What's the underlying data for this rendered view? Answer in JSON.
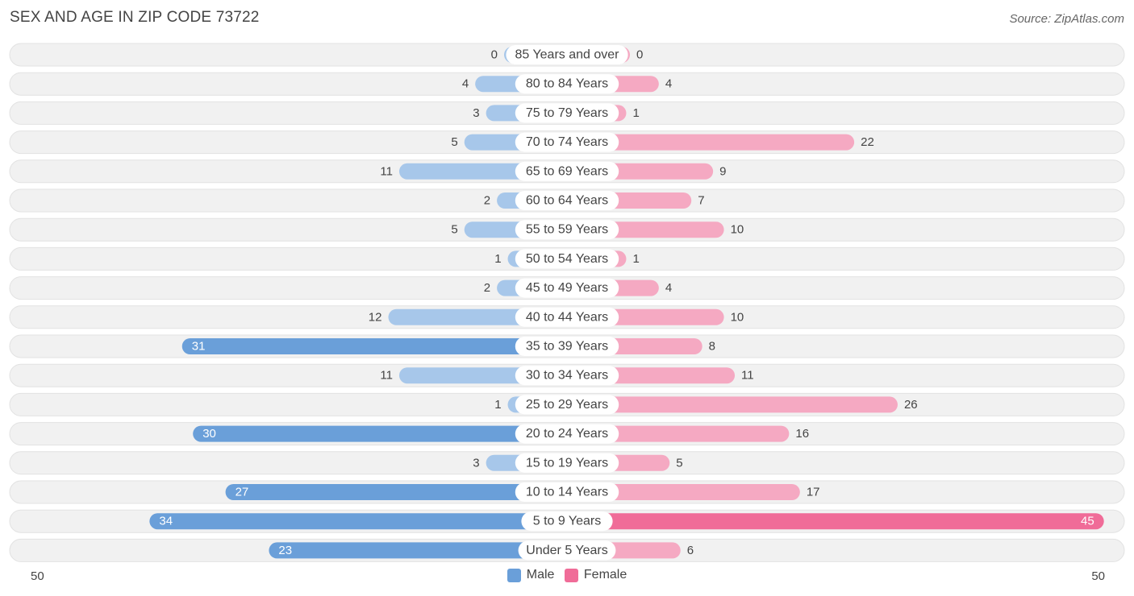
{
  "header": {
    "title": "SEX AND AGE IN ZIP CODE 73722",
    "source": "Source: ZipAtlas.com"
  },
  "legend": {
    "male": "Male",
    "female": "Female"
  },
  "axis": {
    "left_label": "50",
    "right_label": "50"
  },
  "colors": {
    "male_light": "#a7c7ea",
    "male_strong": "#6a9fd9",
    "female_light": "#f5a9c2",
    "female_strong": "#f06c98",
    "row_bg": "#efefef"
  },
  "chart_data": {
    "type": "bar",
    "orientation": "horizontal-diverging",
    "xlim": [
      0,
      50
    ],
    "categories": [
      "85 Years and over",
      "80 to 84 Years",
      "75 to 79 Years",
      "70 to 74 Years",
      "65 to 69 Years",
      "60 to 64 Years",
      "55 to 59 Years",
      "50 to 54 Years",
      "45 to 49 Years",
      "40 to 44 Years",
      "35 to 39 Years",
      "30 to 34 Years",
      "25 to 29 Years",
      "20 to 24 Years",
      "15 to 19 Years",
      "10 to 14 Years",
      "5 to 9 Years",
      "Under 5 Years"
    ],
    "series": [
      {
        "name": "Male",
        "values": [
          0,
          4,
          3,
          5,
          11,
          2,
          5,
          1,
          2,
          12,
          31,
          11,
          1,
          30,
          3,
          27,
          34,
          23
        ]
      },
      {
        "name": "Female",
        "values": [
          0,
          4,
          1,
          22,
          9,
          7,
          10,
          1,
          4,
          10,
          8,
          11,
          26,
          16,
          5,
          17,
          45,
          6
        ]
      }
    ]
  }
}
